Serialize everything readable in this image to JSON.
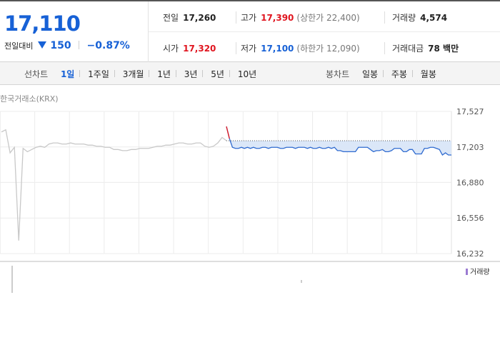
{
  "summary": {
    "current_price": "17,110",
    "change_label": "전일대비",
    "change_value": "150",
    "change_rate": "−0.87%",
    "prev_close_label": "전일",
    "prev_close": "17,260",
    "high_label": "고가",
    "high": "17,390",
    "upper_limit": "(상한가 22,400)",
    "volume_label": "거래량",
    "volume": "4,574",
    "open_label": "시가",
    "open": "17,320",
    "low_label": "저가",
    "low": "17,100",
    "lower_limit": "(하한가 12,090)",
    "amount_label": "거래대금",
    "amount": "78 백만"
  },
  "line_tabs": {
    "title": "선차트",
    "items": [
      "1일",
      "1주일",
      "3개월",
      "1년",
      "3년",
      "5년",
      "10년"
    ],
    "active": 0
  },
  "candle_tabs": {
    "title": "봉차트",
    "items": [
      "일봉",
      "주봉",
      "월봉"
    ]
  },
  "chart": {
    "source": "한국거래소(KRX)",
    "y_ticks": [
      "17,527",
      "17,203",
      "16,880",
      "16,556",
      "16,232"
    ],
    "volume_legend": "거래량",
    "colors": {
      "prev_day": "#c8c8c8",
      "today": "#2f6bd0",
      "fill": "#dbe7f8",
      "up_marker": "#e0151f"
    }
  },
  "chart_data": {
    "type": "line",
    "ylim": [
      16232,
      17527
    ],
    "y_ticks": [
      17527,
      17203,
      16880,
      16556,
      16232
    ],
    "reference_line": 17260,
    "series": [
      {
        "values": [
          17340,
          17360,
          17150,
          17200,
          16350,
          17190,
          17160,
          17180,
          17200,
          17210,
          17200,
          17230,
          17240,
          17240,
          17230,
          17230,
          17240,
          17230,
          17230,
          17230,
          17220,
          17220,
          17210,
          17210,
          17200,
          17200,
          17180,
          17180,
          17170,
          17170,
          17180,
          17180,
          17190,
          17190,
          17190,
          17200,
          17210,
          17210,
          17220,
          17220,
          17230,
          17240,
          17240,
          17230,
          17230,
          17240,
          17240,
          17210,
          17200,
          17210,
          17240,
          17290,
          17260
        ]
      },
      {
        "values": [
          17390,
          17280,
          17200,
          17190,
          17190,
          17200,
          17190,
          17200,
          17190,
          17200,
          17190,
          17190,
          17200,
          17200,
          17190,
          17200,
          17200,
          17200,
          17190,
          17190,
          17200,
          17200,
          17200,
          17190,
          17200,
          17200,
          17200,
          17190,
          17200,
          17190,
          17190,
          17200,
          17190,
          17190,
          17200,
          17190,
          17200,
          17170,
          17170,
          17160,
          17160,
          17160,
          17160,
          17160,
          17200,
          17200,
          17200,
          17200,
          17180,
          17160,
          17170,
          17170,
          17180,
          17160,
          17160,
          17170,
          17190,
          17190,
          17190,
          17160,
          17160,
          17180,
          17180,
          17140,
          17140,
          17140,
          17190,
          17190,
          17200,
          17200,
          17190,
          17180,
          17130,
          17150,
          17130,
          17130
        ]
      }
    ]
  }
}
